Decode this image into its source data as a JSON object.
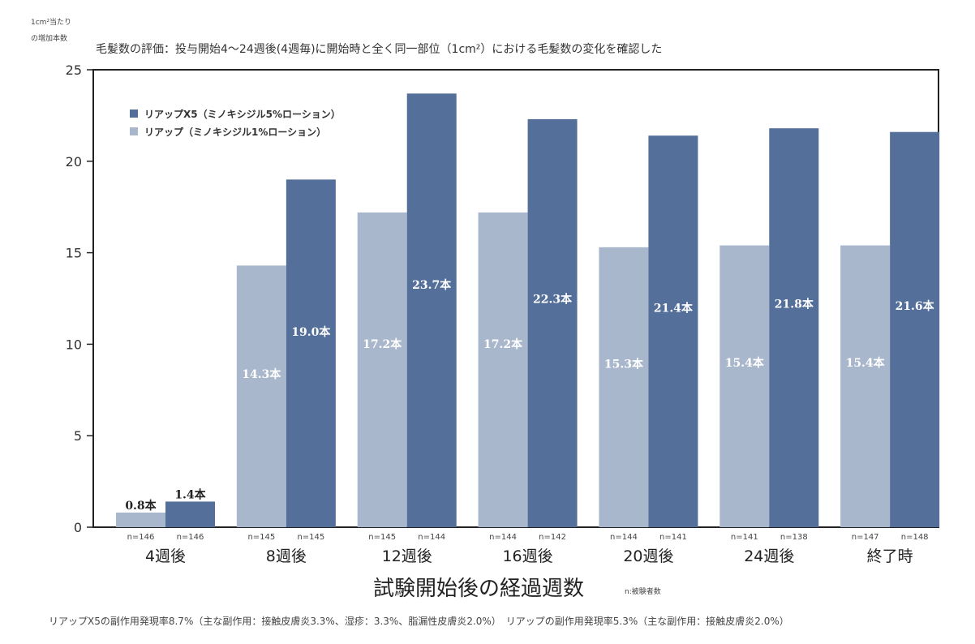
{
  "header": {
    "unit_line1": "1cm²当たり",
    "unit_line2": "の増加本数",
    "title": "毛髪数の評価：投与開始4～24週後(4週毎)に開始時と全く同一部位（1cm²）における毛髪数の変化を確認した"
  },
  "axis": {
    "xlabel": "試験開始後の経過週数",
    "n_note": "n:被験者数"
  },
  "footnote": "リアップX5の副作用発現率8.7%（主な副作用：接触皮膚炎3.3%、湿疹：3.3%、脂漏性皮膚炎2.0%）　リアップの副作用発現率5.3%（主な副作用：接触皮膚炎2.0%）",
  "colors": {
    "light": "#a9b7cc",
    "dark": "#536f9a",
    "axis": "#222222"
  },
  "chart_data": {
    "type": "bar",
    "title": "毛髪数の評価：投与開始4～24週後(4週毎)に開始時と全く同一部位（1cm²）における毛髪数の変化を確認した",
    "xlabel": "試験開始後の経過週数",
    "ylabel": "1cm²当たりの増加本数",
    "ylim": [
      0,
      25
    ],
    "yticks": [
      0,
      5,
      10,
      15,
      20,
      25
    ],
    "categories": [
      "4週後",
      "8週後",
      "12週後",
      "16週後",
      "20週後",
      "24週後",
      "終了時"
    ],
    "legend_position": "top-left",
    "series": [
      {
        "name": "リアップ（ミノキシジル1%ローション）",
        "color": "#a9b7cc",
        "values": [
          0.8,
          14.3,
          17.2,
          17.2,
          15.3,
          15.4,
          15.4
        ],
        "labels": [
          "0.8本",
          "14.3本",
          "17.2本",
          "17.2本",
          "15.3本",
          "15.4本",
          "15.4本"
        ],
        "n": [
          "n=146",
          "n=145",
          "n=145",
          "n=144",
          "n=144",
          "n=141",
          "n=147"
        ]
      },
      {
        "name": "リアップX5（ミノキシジル5%ローション）",
        "color": "#536f9a",
        "values": [
          1.4,
          19.0,
          23.7,
          22.3,
          21.4,
          21.8,
          21.6
        ],
        "labels": [
          "1.4本",
          "19.0本",
          "23.7本",
          "22.3本",
          "21.4本",
          "21.8本",
          "21.6本"
        ],
        "n": [
          "n=146",
          "n=145",
          "n=144",
          "n=142",
          "n=141",
          "n=138",
          "n=148"
        ]
      }
    ],
    "legend_order": [
      1,
      0
    ]
  }
}
